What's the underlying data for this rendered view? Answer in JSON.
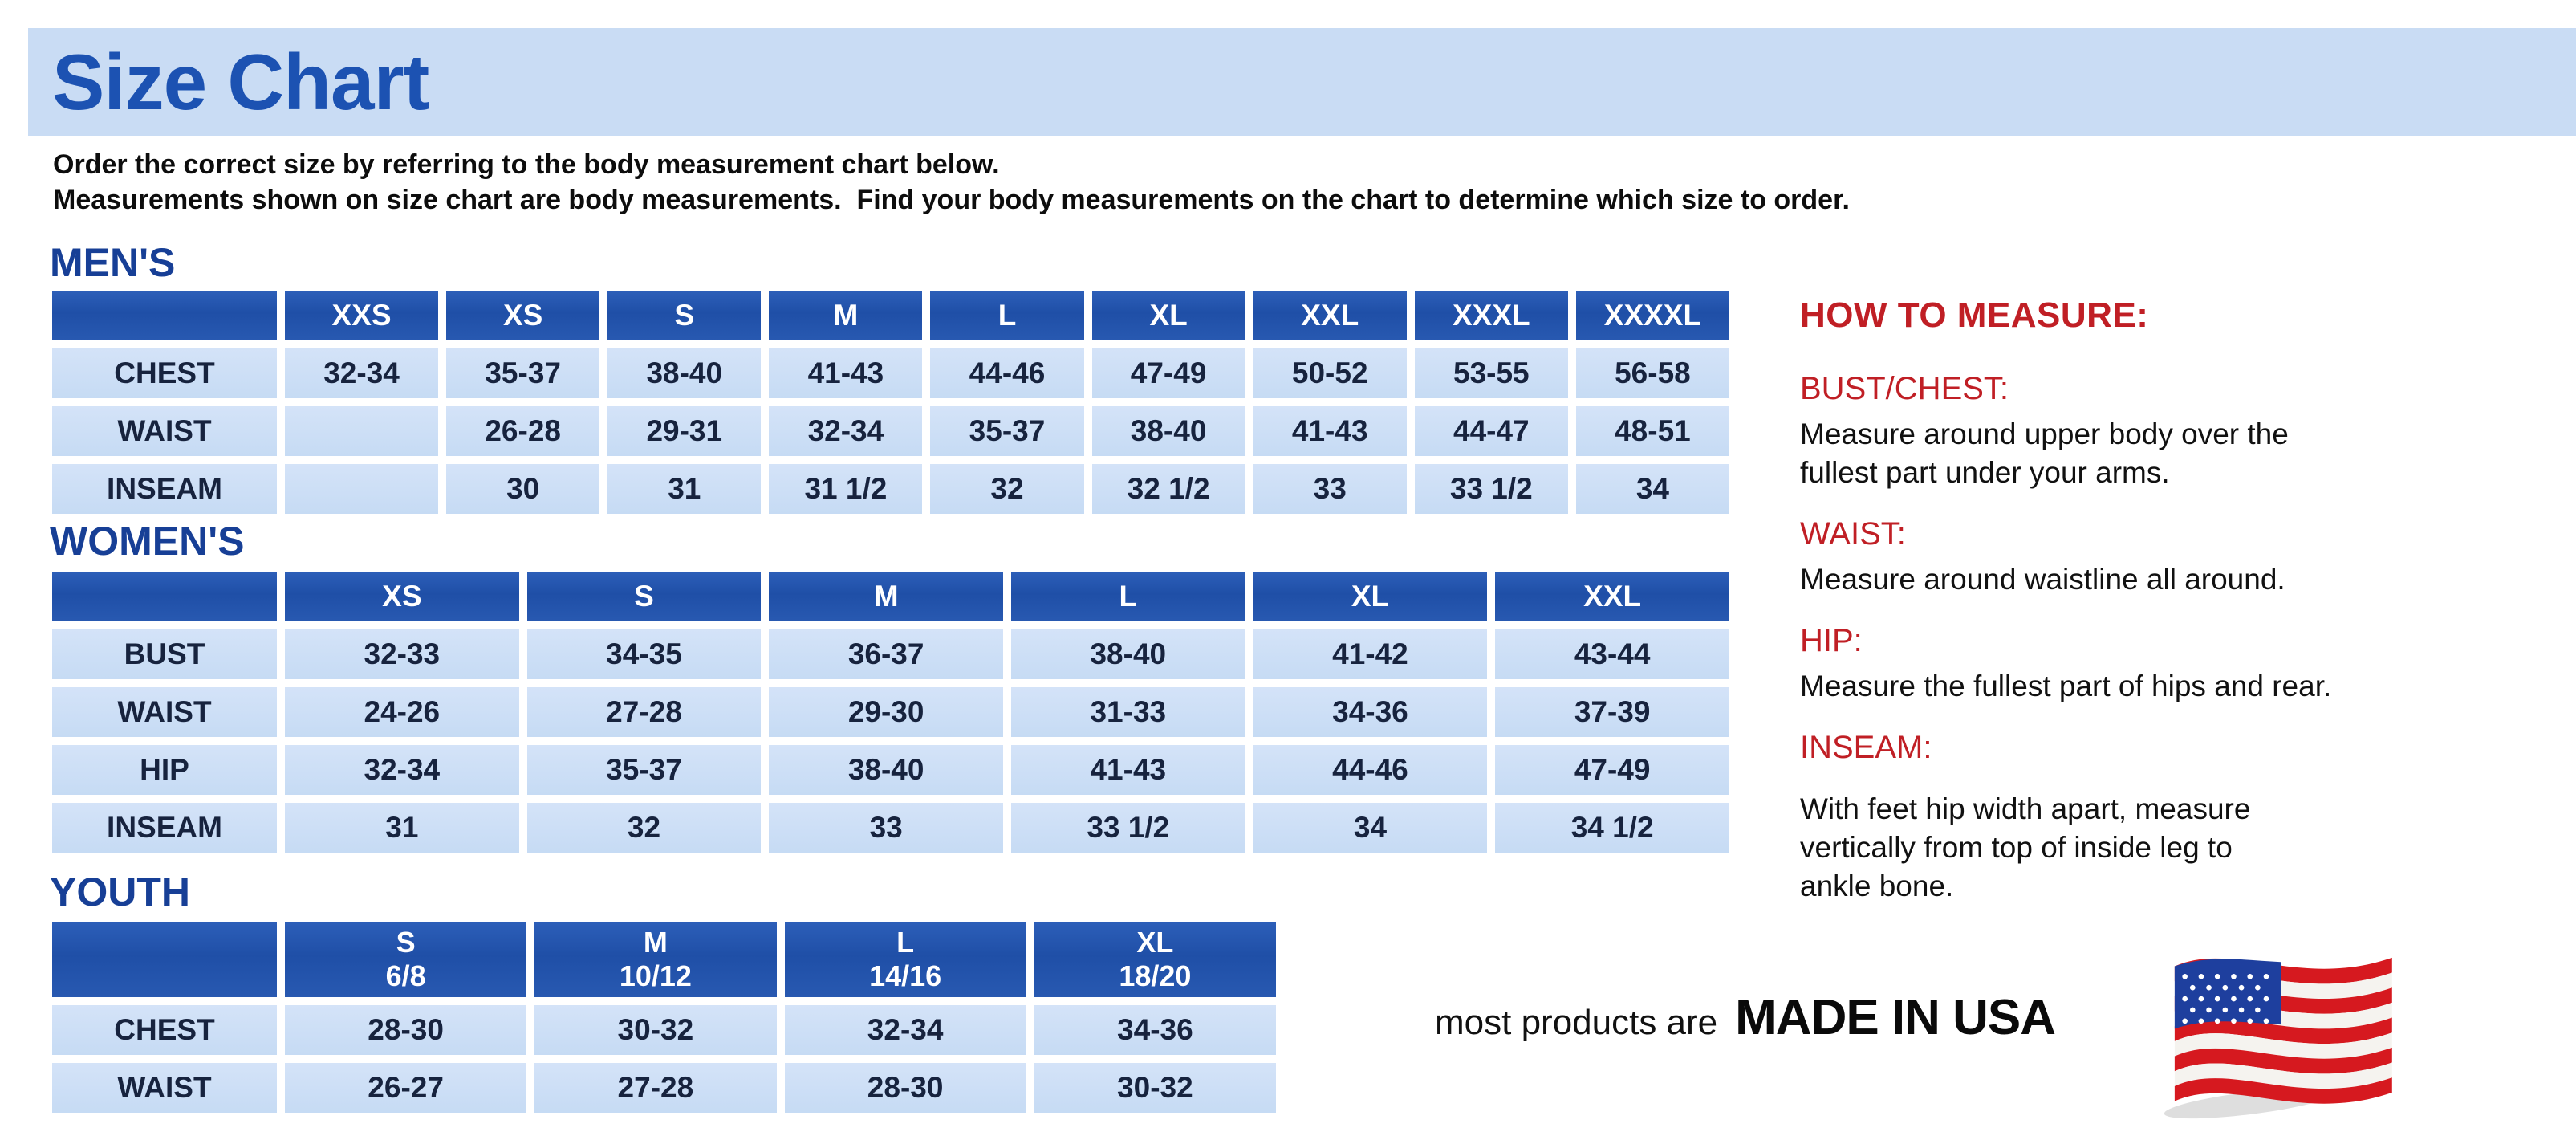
{
  "page": {
    "title": "Size Chart",
    "intro_lines": [
      "Order the correct size by referring to the body measurement chart below.",
      "Measurements shown on size chart are body measurements.  Find your body measurements on the chart to determine which size to order."
    ]
  },
  "tables": {
    "mens": {
      "heading": "MEN'S",
      "columns": [
        "XXS",
        "XS",
        "S",
        "M",
        "L",
        "XL",
        "XXL",
        "XXXL",
        "XXXXL"
      ],
      "rows": [
        {
          "label": "CHEST",
          "values": [
            "32-34",
            "35-37",
            "38-40",
            "41-43",
            "44-46",
            "47-49",
            "50-52",
            "53-55",
            "56-58"
          ]
        },
        {
          "label": "WAIST",
          "values": [
            "",
            "26-28",
            "29-31",
            "32-34",
            "35-37",
            "38-40",
            "41-43",
            "44-47",
            "48-51"
          ]
        },
        {
          "label": "INSEAM",
          "values": [
            "",
            "30",
            "31",
            "31 1/2",
            "32",
            "32 1/2",
            "33",
            "33 1/2",
            "34"
          ]
        }
      ]
    },
    "womens": {
      "heading": "WOMEN'S",
      "columns": [
        "XS",
        "S",
        "M",
        "L",
        "XL",
        "XXL"
      ],
      "rows": [
        {
          "label": "BUST",
          "values": [
            "32-33",
            "34-35",
            "36-37",
            "38-40",
            "41-42",
            "43-44"
          ]
        },
        {
          "label": "WAIST",
          "values": [
            "24-26",
            "27-28",
            "29-30",
            "31-33",
            "34-36",
            "37-39"
          ]
        },
        {
          "label": "HIP",
          "values": [
            "32-34",
            "35-37",
            "38-40",
            "41-43",
            "44-46",
            "47-49"
          ]
        },
        {
          "label": "INSEAM",
          "values": [
            "31",
            "32",
            "33",
            "33 1/2",
            "34",
            "34 1/2"
          ]
        }
      ]
    },
    "youth": {
      "heading": "YOUTH",
      "columns": [
        {
          "size": "S",
          "range": "6/8"
        },
        {
          "size": "M",
          "range": "10/12"
        },
        {
          "size": "L",
          "range": "14/16"
        },
        {
          "size": "XL",
          "range": "18/20"
        }
      ],
      "rows": [
        {
          "label": "CHEST",
          "values": [
            "28-30",
            "30-32",
            "32-34",
            "34-36"
          ]
        },
        {
          "label": "WAIST",
          "values": [
            "26-27",
            "27-28",
            "28-30",
            "30-32"
          ]
        }
      ]
    }
  },
  "how_to_measure": {
    "heading": "HOW TO MEASURE:",
    "items": [
      {
        "label": "BUST/CHEST:",
        "lines": [
          "Measure around upper body over the",
          "fullest part under your arms."
        ]
      },
      {
        "label": "WAIST:",
        "lines": [
          "Measure around waistline all around."
        ]
      },
      {
        "label": "HIP:",
        "lines": [
          "Measure the fullest part of hips and rear."
        ]
      },
      {
        "label": "INSEAM:",
        "lines": [
          "With feet hip width apart, measure",
          "vertically from top of inside leg to",
          "ankle bone."
        ]
      }
    ]
  },
  "footer": {
    "prefix": "most products are",
    "brand": "MADE IN USA",
    "flag_icon": "us-flag-icon"
  },
  "colors": {
    "title_blue": "#1c52b2",
    "heading_blue": "#173f96",
    "header_blue": "#1f4fa7",
    "banner_blue": "#c9dcf4",
    "cell_blue": "#c6dbf4",
    "accent_red": "#c01f25",
    "flag_red": "#d6191f",
    "flag_white": "#f5f3ef",
    "flag_blue": "#1e3f9e"
  }
}
